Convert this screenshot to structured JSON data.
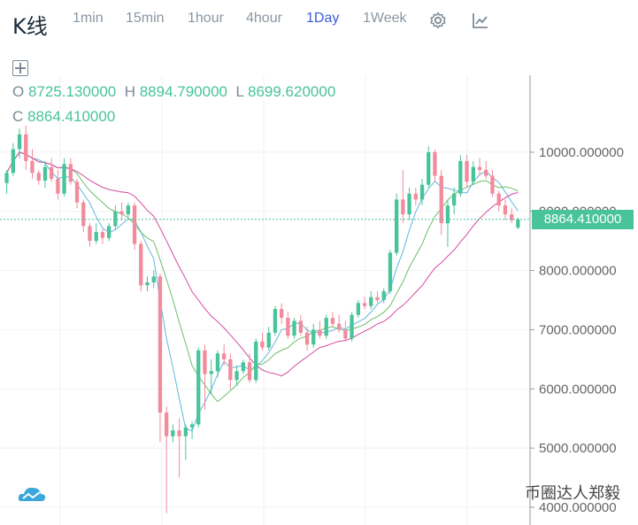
{
  "toolbar": {
    "title": "K线",
    "intervals": [
      "1min",
      "15min",
      "1hour",
      "4hour",
      "1Day",
      "1Week"
    ],
    "active_interval": "1Day",
    "icons": [
      "gear-icon",
      "line-chart-icon"
    ]
  },
  "ohlc": {
    "o_label": "O",
    "o_value": "8725.130000",
    "h_label": "H",
    "h_value": "8894.790000",
    "l_label": "L",
    "l_value": "8699.620000",
    "c_label": "C",
    "c_value": "8864.410000"
  },
  "last_price_tag": "8864.410000",
  "watermark": "币圈达人郑毅",
  "colors": {
    "up": "#49c39a",
    "down": "#f28b9c",
    "ma1": "#60b7e0",
    "ma2": "#6cbf6c",
    "ma3": "#d54ba0",
    "axis": "#999999",
    "grid": "#f0f2f4"
  },
  "chart_data": {
    "type": "candlestick",
    "y_axis_ticks": [
      "4000.000000",
      "5000.000000",
      "6000.000000",
      "7000.000000",
      "8000.000000",
      "9000.000000",
      "10000.000000"
    ],
    "ylim": [
      3700,
      11300
    ],
    "last_price": 8864.41,
    "candles": [
      {
        "o": 9480,
        "h": 9700,
        "l": 9300,
        "c": 9650
      },
      {
        "o": 9650,
        "h": 10150,
        "l": 9600,
        "c": 10050
      },
      {
        "o": 10050,
        "h": 10400,
        "l": 9900,
        "c": 10300
      },
      {
        "o": 10300,
        "h": 10450,
        "l": 9700,
        "c": 9850
      },
      {
        "o": 9850,
        "h": 10050,
        "l": 9550,
        "c": 9650
      },
      {
        "o": 9650,
        "h": 9700,
        "l": 9450,
        "c": 9520
      },
      {
        "o": 9520,
        "h": 9850,
        "l": 9400,
        "c": 9750
      },
      {
        "o": 9750,
        "h": 9900,
        "l": 9500,
        "c": 9550
      },
      {
        "o": 9550,
        "h": 9700,
        "l": 9200,
        "c": 9300
      },
      {
        "o": 9300,
        "h": 9900,
        "l": 9250,
        "c": 9800
      },
      {
        "o": 9800,
        "h": 9900,
        "l": 9450,
        "c": 9500
      },
      {
        "o": 9500,
        "h": 9550,
        "l": 9050,
        "c": 9150
      },
      {
        "o": 9150,
        "h": 9200,
        "l": 8650,
        "c": 8750
      },
      {
        "o": 8750,
        "h": 8800,
        "l": 8400,
        "c": 8500
      },
      {
        "o": 8500,
        "h": 8800,
        "l": 8450,
        "c": 8650
      },
      {
        "o": 8650,
        "h": 8700,
        "l": 8450,
        "c": 8550
      },
      {
        "o": 8550,
        "h": 8800,
        "l": 8500,
        "c": 8750
      },
      {
        "o": 8750,
        "h": 9100,
        "l": 8700,
        "c": 9000
      },
      {
        "o": 9000,
        "h": 9150,
        "l": 8850,
        "c": 8950
      },
      {
        "o": 8950,
        "h": 9150,
        "l": 8900,
        "c": 9100
      },
      {
        "o": 9100,
        "h": 9150,
        "l": 8350,
        "c": 8450
      },
      {
        "o": 8450,
        "h": 8500,
        "l": 7650,
        "c": 7750
      },
      {
        "o": 7750,
        "h": 7900,
        "l": 7650,
        "c": 7800
      },
      {
        "o": 7800,
        "h": 8000,
        "l": 7700,
        "c": 7900
      },
      {
        "o": 7900,
        "h": 7950,
        "l": 5100,
        "c": 5600
      },
      {
        "o": 5600,
        "h": 5700,
        "l": 3900,
        "c": 5200
      },
      {
        "o": 5200,
        "h": 5400,
        "l": 5100,
        "c": 5300
      },
      {
        "o": 5300,
        "h": 5500,
        "l": 4500,
        "c": 5200
      },
      {
        "o": 5200,
        "h": 5400,
        "l": 4800,
        "c": 5350
      },
      {
        "o": 5350,
        "h": 5450,
        "l": 5150,
        "c": 5400
      },
      {
        "o": 5400,
        "h": 6700,
        "l": 5350,
        "c": 6650
      },
      {
        "o": 6650,
        "h": 6750,
        "l": 5650,
        "c": 6250
      },
      {
        "o": 6250,
        "h": 6500,
        "l": 5900,
        "c": 6300
      },
      {
        "o": 6300,
        "h": 6650,
        "l": 6200,
        "c": 6600
      },
      {
        "o": 6600,
        "h": 6750,
        "l": 6400,
        "c": 6500
      },
      {
        "o": 6500,
        "h": 6600,
        "l": 6000,
        "c": 6150
      },
      {
        "o": 6150,
        "h": 6400,
        "l": 6050,
        "c": 6300
      },
      {
        "o": 6300,
        "h": 6500,
        "l": 6250,
        "c": 6450
      },
      {
        "o": 6450,
        "h": 6600,
        "l": 6100,
        "c": 6150
      },
      {
        "o": 6150,
        "h": 6850,
        "l": 6100,
        "c": 6800
      },
      {
        "o": 6800,
        "h": 6950,
        "l": 6650,
        "c": 6700
      },
      {
        "o": 6700,
        "h": 7050,
        "l": 6650,
        "c": 6950
      },
      {
        "o": 6950,
        "h": 7400,
        "l": 6900,
        "c": 7350
      },
      {
        "o": 7350,
        "h": 7450,
        "l": 7100,
        "c": 7200
      },
      {
        "o": 7200,
        "h": 7300,
        "l": 6850,
        "c": 6900
      },
      {
        "o": 6900,
        "h": 7200,
        "l": 6850,
        "c": 7150
      },
      {
        "o": 7150,
        "h": 7250,
        "l": 6900,
        "c": 6950
      },
      {
        "o": 6950,
        "h": 7050,
        "l": 6650,
        "c": 6750
      },
      {
        "o": 6750,
        "h": 7100,
        "l": 6700,
        "c": 7000
      },
      {
        "o": 7000,
        "h": 7150,
        "l": 6850,
        "c": 6900
      },
      {
        "o": 6900,
        "h": 7250,
        "l": 6850,
        "c": 7200
      },
      {
        "o": 7200,
        "h": 7300,
        "l": 7050,
        "c": 7100
      },
      {
        "o": 7100,
        "h": 7250,
        "l": 6950,
        "c": 7000
      },
      {
        "o": 7000,
        "h": 7150,
        "l": 6800,
        "c": 6850
      },
      {
        "o": 6850,
        "h": 7300,
        "l": 6800,
        "c": 7250
      },
      {
        "o": 7250,
        "h": 7500,
        "l": 7200,
        "c": 7450
      },
      {
        "o": 7450,
        "h": 7550,
        "l": 7350,
        "c": 7400
      },
      {
        "o": 7400,
        "h": 7650,
        "l": 7350,
        "c": 7550
      },
      {
        "o": 7550,
        "h": 7650,
        "l": 7450,
        "c": 7500
      },
      {
        "o": 7500,
        "h": 7700,
        "l": 7450,
        "c": 7650
      },
      {
        "o": 7650,
        "h": 8350,
        "l": 7600,
        "c": 8300
      },
      {
        "o": 8300,
        "h": 9300,
        "l": 8250,
        "c": 9200
      },
      {
        "o": 9200,
        "h": 9700,
        "l": 8800,
        "c": 8950
      },
      {
        "o": 8950,
        "h": 9400,
        "l": 8850,
        "c": 9300
      },
      {
        "o": 9300,
        "h": 9400,
        "l": 9100,
        "c": 9200
      },
      {
        "o": 9200,
        "h": 9550,
        "l": 9100,
        "c": 9450
      },
      {
        "o": 9450,
        "h": 10100,
        "l": 9400,
        "c": 10000
      },
      {
        "o": 10000,
        "h": 10050,
        "l": 9500,
        "c": 9600
      },
      {
        "o": 9600,
        "h": 9700,
        "l": 8600,
        "c": 8800
      },
      {
        "o": 8800,
        "h": 9200,
        "l": 8400,
        "c": 9100
      },
      {
        "o": 9100,
        "h": 9400,
        "l": 8950,
        "c": 9300
      },
      {
        "o": 9300,
        "h": 9950,
        "l": 9250,
        "c": 9850
      },
      {
        "o": 9850,
        "h": 9950,
        "l": 9400,
        "c": 9500
      },
      {
        "o": 9500,
        "h": 9850,
        "l": 9450,
        "c": 9750
      },
      {
        "o": 9750,
        "h": 9900,
        "l": 9600,
        "c": 9700
      },
      {
        "o": 9700,
        "h": 9850,
        "l": 9550,
        "c": 9600
      },
      {
        "o": 9600,
        "h": 9700,
        "l": 9250,
        "c": 9300
      },
      {
        "o": 9300,
        "h": 9350,
        "l": 9000,
        "c": 9100
      },
      {
        "o": 9100,
        "h": 9200,
        "l": 8850,
        "c": 8950
      },
      {
        "o": 8950,
        "h": 9050,
        "l": 8800,
        "c": 8850
      },
      {
        "o": 8725,
        "h": 8895,
        "l": 8700,
        "c": 8864
      }
    ]
  }
}
